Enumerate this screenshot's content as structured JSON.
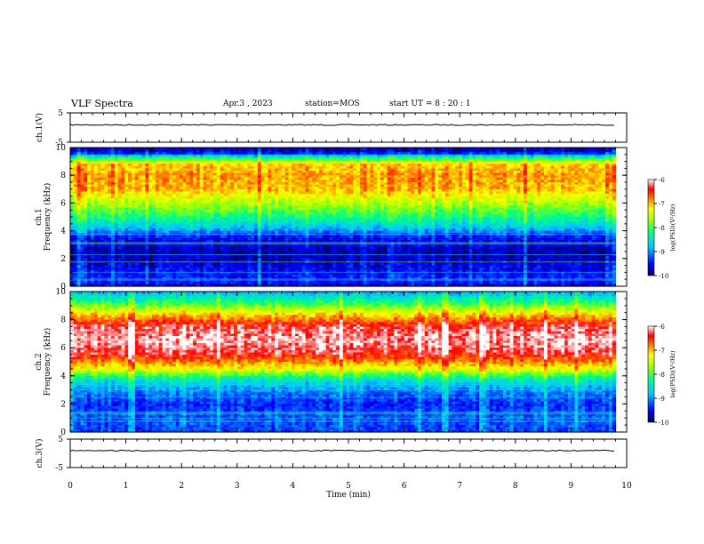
{
  "header": {
    "title": "VLF Spectra",
    "date": "Apr.3 , 2023",
    "station": "station=MOS",
    "start": "start UT = 8 : 20 : 1"
  },
  "chart_data": [
    {
      "type": "line",
      "panel": "ch1-voltage",
      "ylabel": "ch.1(V)",
      "ylim": [
        -5,
        5
      ],
      "yticks": [
        "5",
        "-5"
      ],
      "xlim": [
        0,
        10
      ],
      "series": [
        {
          "x": [
            0,
            9.8
          ],
          "y": [
            0,
            0
          ]
        }
      ],
      "color": "#000000"
    },
    {
      "type": "heatmap",
      "panel": "ch1-spectrogram",
      "ylabel_lines": [
        "ch.1",
        "Frequency (kHz)"
      ],
      "ylim": [
        0,
        10
      ],
      "yticks": [
        "0",
        "2",
        "4",
        "6",
        "8",
        "10"
      ],
      "xlim": [
        0,
        10
      ],
      "data_xmax": 9.8,
      "colorbar": {
        "label": "log(PSD)(V²/Hz)",
        "ticks": [
          "-6",
          "-7",
          "-8",
          "-9",
          "-10"
        ],
        "range": [
          -10,
          -6
        ]
      },
      "band_profile": [
        {
          "f": 0,
          "level": -9.6
        },
        {
          "f": 0.5,
          "level": -9.4
        },
        {
          "f": 1.5,
          "level": -9.6
        },
        {
          "f": 2.5,
          "level": -9.8
        },
        {
          "f": 3.5,
          "level": -9.5
        },
        {
          "f": 4.2,
          "level": -8.8
        },
        {
          "f": 5.0,
          "level": -8.2
        },
        {
          "f": 6.0,
          "level": -7.6
        },
        {
          "f": 7.0,
          "level": -7.0
        },
        {
          "f": 8.0,
          "level": -6.9
        },
        {
          "f": 8.8,
          "level": -7.1
        },
        {
          "f": 9.3,
          "level": -8.3
        },
        {
          "f": 9.6,
          "level": -9.5
        },
        {
          "f": 10.0,
          "level": -9.8
        }
      ]
    },
    {
      "type": "heatmap",
      "panel": "ch2-spectrogram",
      "ylabel_lines": [
        "ch.2",
        "Frequency (kHz)"
      ],
      "ylim": [
        0,
        10
      ],
      "yticks": [
        "0",
        "2",
        "4",
        "6",
        "8",
        "10"
      ],
      "xlim": [
        0,
        10
      ],
      "data_xmax": 9.8,
      "colorbar": {
        "label": "log(PSD)(V²/Hz)",
        "ticks": [
          "-6",
          "-7",
          "-8",
          "-9",
          "-10"
        ],
        "range": [
          -10,
          -6
        ]
      },
      "band_profile": [
        {
          "f": 0,
          "level": -9.3
        },
        {
          "f": 1.0,
          "level": -9.2
        },
        {
          "f": 2.0,
          "level": -9.4
        },
        {
          "f": 3.0,
          "level": -9.0
        },
        {
          "f": 3.8,
          "level": -8.4
        },
        {
          "f": 4.5,
          "level": -7.3
        },
        {
          "f": 5.5,
          "level": -6.4
        },
        {
          "f": 6.5,
          "level": -6.1
        },
        {
          "f": 7.5,
          "level": -6.3
        },
        {
          "f": 8.3,
          "level": -7.0
        },
        {
          "f": 9.0,
          "level": -7.9
        },
        {
          "f": 9.6,
          "level": -8.5
        },
        {
          "f": 10.0,
          "level": -8.9
        }
      ]
    },
    {
      "type": "line",
      "panel": "ch3-voltage",
      "ylabel": "ch.3(V)",
      "ylim": [
        -5,
        5
      ],
      "yticks": [
        "5",
        "-5"
      ],
      "xlim": [
        0,
        10
      ],
      "xlabel": "Time (min)",
      "xticks": [
        "0",
        "1",
        "2",
        "3",
        "4",
        "5",
        "6",
        "7",
        "8",
        "9",
        "10"
      ],
      "series": [
        {
          "x": [
            0,
            9.8
          ],
          "y": [
            0,
            0
          ]
        }
      ],
      "color": "#000000"
    }
  ]
}
